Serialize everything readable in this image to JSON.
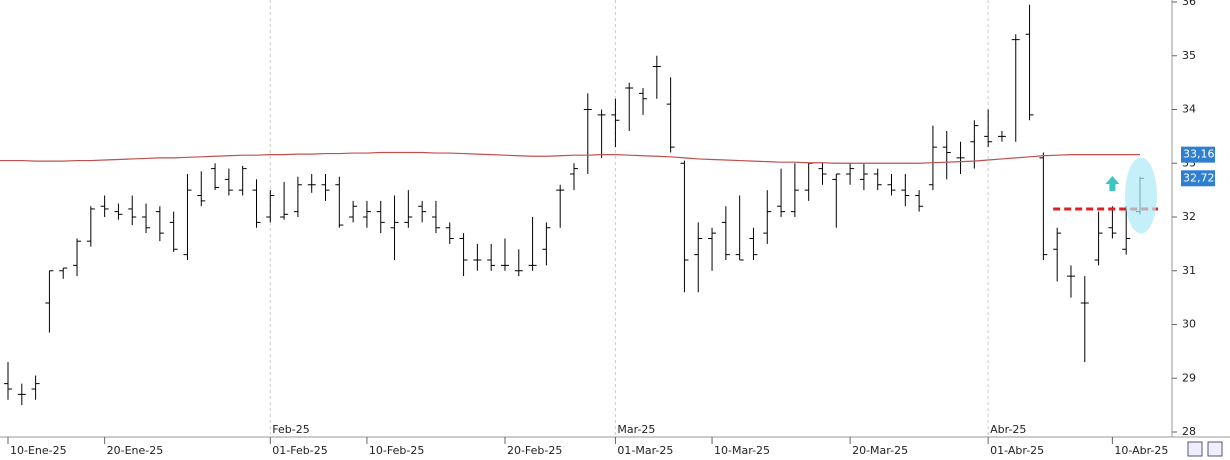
{
  "chart_data": {
    "type": "ohlc",
    "ylim": [
      28,
      36
    ],
    "yticks": [
      28,
      29,
      30,
      31,
      32,
      33,
      34,
      35,
      36
    ],
    "categories": [
      "10-Ene-25",
      null,
      null,
      null,
      null,
      null,
      null,
      "20-Ene-25",
      null,
      null,
      null,
      null,
      null,
      null,
      null,
      null,
      null,
      null,
      null,
      "01-Feb-25",
      null,
      null,
      null,
      null,
      null,
      null,
      "10-Feb-25",
      null,
      null,
      null,
      null,
      null,
      null,
      null,
      null,
      null,
      "20-Feb-25",
      null,
      null,
      null,
      null,
      null,
      null,
      null,
      "01-Mar-25",
      null,
      null,
      null,
      null,
      null,
      null,
      "10-Mar-25",
      null,
      null,
      null,
      null,
      null,
      null,
      null,
      null,
      null,
      "20-Mar-25",
      null,
      null,
      null,
      null,
      null,
      null,
      null,
      null,
      null,
      "01-Abr-25",
      null,
      null,
      null,
      null,
      null,
      null,
      null,
      null,
      "10-Abr-25",
      null,
      null
    ],
    "months": [
      null,
      null,
      null,
      null,
      null,
      null,
      null,
      null,
      null,
      null,
      null,
      null,
      null,
      null,
      null,
      null,
      null,
      null,
      null,
      "Feb-25",
      null,
      null,
      null,
      null,
      null,
      null,
      null,
      null,
      null,
      null,
      null,
      null,
      null,
      null,
      null,
      null,
      null,
      null,
      null,
      null,
      null,
      null,
      null,
      null,
      "Mar-25",
      null,
      null,
      null,
      null,
      null,
      null,
      null,
      null,
      null,
      null,
      null,
      null,
      null,
      null,
      null,
      null,
      null,
      null,
      null,
      null,
      null,
      null,
      null,
      null,
      null,
      null,
      "Abr-25",
      null,
      null,
      null,
      null,
      null,
      null,
      null,
      null,
      null,
      null,
      null
    ],
    "bars": [
      [
        28.9,
        29.3,
        28.6,
        28.8
      ],
      [
        28.7,
        28.9,
        28.5,
        28.7
      ],
      [
        28.8,
        29.05,
        28.6,
        28.9
      ],
      [
        30.4,
        31.0,
        29.85,
        31.0
      ],
      [
        31.0,
        31.05,
        30.85,
        31.05
      ],
      [
        31.1,
        31.6,
        30.9,
        31.55
      ],
      [
        31.55,
        32.2,
        31.45,
        32.15
      ],
      [
        32.2,
        32.4,
        32.0,
        32.15
      ],
      [
        32.1,
        32.25,
        31.95,
        32.05
      ],
      [
        32.15,
        32.4,
        31.85,
        32.0
      ],
      [
        32.0,
        32.25,
        31.7,
        31.8
      ],
      [
        32.1,
        32.2,
        31.55,
        31.7
      ],
      [
        31.9,
        32.1,
        31.35,
        31.4
      ],
      [
        31.3,
        32.8,
        31.2,
        32.5
      ],
      [
        32.4,
        32.85,
        32.2,
        32.3
      ],
      [
        32.9,
        33.0,
        32.5,
        32.55
      ],
      [
        32.7,
        32.9,
        32.4,
        32.5
      ],
      [
        32.5,
        32.95,
        32.4,
        32.9
      ],
      [
        32.5,
        32.7,
        31.8,
        31.9
      ],
      [
        32.0,
        32.5,
        31.9,
        32.4
      ],
      [
        32.0,
        32.65,
        31.95,
        32.05
      ],
      [
        32.1,
        32.75,
        32.0,
        32.6
      ],
      [
        32.6,
        32.8,
        32.45,
        32.6
      ],
      [
        32.6,
        32.8,
        32.3,
        32.5
      ],
      [
        32.6,
        32.75,
        31.8,
        31.85
      ],
      [
        32.0,
        32.3,
        31.9,
        32.2
      ],
      [
        32.0,
        32.3,
        31.8,
        32.1
      ],
      [
        32.1,
        32.3,
        31.7,
        31.9
      ],
      [
        31.8,
        32.4,
        31.2,
        31.9
      ],
      [
        31.9,
        32.5,
        31.8,
        32.0
      ],
      [
        32.2,
        32.3,
        31.9,
        32.1
      ],
      [
        32.0,
        32.3,
        31.7,
        31.8
      ],
      [
        31.8,
        31.9,
        31.5,
        31.6
      ],
      [
        31.6,
        31.7,
        30.9,
        31.2
      ],
      [
        31.2,
        31.5,
        31.0,
        31.2
      ],
      [
        31.2,
        31.5,
        31.0,
        31.1
      ],
      [
        31.1,
        31.6,
        31.0,
        31.1
      ],
      [
        31.0,
        31.4,
        30.9,
        31.0
      ],
      [
        31.1,
        32.0,
        31.0,
        31.1
      ],
      [
        31.4,
        31.9,
        31.1,
        31.8
      ],
      [
        32.5,
        32.6,
        31.8,
        32.5
      ],
      [
        32.8,
        33.0,
        32.5,
        32.9
      ],
      [
        34.0,
        34.3,
        32.8,
        34.0
      ],
      [
        33.9,
        34.0,
        33.1,
        33.9
      ],
      [
        33.9,
        34.2,
        33.3,
        33.8
      ],
      [
        34.4,
        34.5,
        33.6,
        34.4
      ],
      [
        34.3,
        34.4,
        33.9,
        34.2
      ],
      [
        34.8,
        35.0,
        34.2,
        34.8
      ],
      [
        34.1,
        34.6,
        33.2,
        33.3
      ],
      [
        33.0,
        33.05,
        30.6,
        31.2
      ],
      [
        31.3,
        31.9,
        30.6,
        31.6
      ],
      [
        31.6,
        31.8,
        31.0,
        31.7
      ],
      [
        31.9,
        32.2,
        31.2,
        31.3
      ],
      [
        31.3,
        32.4,
        31.2,
        31.2
      ],
      [
        31.6,
        31.8,
        31.2,
        31.3
      ],
      [
        31.7,
        32.5,
        31.5,
        32.1
      ],
      [
        32.2,
        32.9,
        32.0,
        32.1
      ],
      [
        32.1,
        33.0,
        32.0,
        32.5
      ],
      [
        32.5,
        33.0,
        32.3,
        33.0
      ],
      [
        32.9,
        33.0,
        32.6,
        32.8
      ],
      [
        32.7,
        32.8,
        31.8,
        32.8
      ],
      [
        32.8,
        33.0,
        32.6,
        32.9
      ],
      [
        32.7,
        33.0,
        32.5,
        32.8
      ],
      [
        32.8,
        32.9,
        32.5,
        32.6
      ],
      [
        32.6,
        32.8,
        32.4,
        32.5
      ],
      [
        32.5,
        32.8,
        32.2,
        32.4
      ],
      [
        32.4,
        32.5,
        32.1,
        32.2
      ],
      [
        32.6,
        33.7,
        32.5,
        33.3
      ],
      [
        33.3,
        33.6,
        32.7,
        33.2
      ],
      [
        33.1,
        33.4,
        32.8,
        33.1
      ],
      [
        33.4,
        33.8,
        32.9,
        33.7
      ],
      [
        33.5,
        34.0,
        33.3,
        33.4
      ],
      [
        33.5,
        33.6,
        33.4,
        33.5
      ],
      [
        35.3,
        35.4,
        33.4,
        35.3
      ],
      [
        35.4,
        35.95,
        33.8,
        33.9
      ],
      [
        33.1,
        33.2,
        31.2,
        31.3
      ],
      [
        31.4,
        31.8,
        30.8,
        31.7
      ],
      [
        30.9,
        31.1,
        30.5,
        30.9
      ],
      [
        30.4,
        30.9,
        29.3,
        30.4
      ],
      [
        31.2,
        32.1,
        31.1,
        31.7
      ],
      [
        31.8,
        32.2,
        31.6,
        31.7
      ],
      [
        31.4,
        32.2,
        31.3,
        31.6
      ],
      [
        32.1,
        32.75,
        32.05,
        32.72
      ]
    ],
    "average": {
      "color": "#c0504d",
      "values": [
        33.05,
        33.05,
        33.04,
        33.04,
        33.04,
        33.05,
        33.05,
        33.06,
        33.07,
        33.08,
        33.09,
        33.1,
        33.1,
        33.11,
        33.12,
        33.13,
        33.14,
        33.15,
        33.15,
        33.16,
        33.16,
        33.17,
        33.17,
        33.18,
        33.18,
        33.19,
        33.19,
        33.2,
        33.2,
        33.2,
        33.2,
        33.19,
        33.19,
        33.18,
        33.17,
        33.16,
        33.15,
        33.14,
        33.13,
        33.13,
        33.14,
        33.15,
        33.15,
        33.16,
        33.16,
        33.15,
        33.14,
        33.13,
        33.12,
        33.1,
        33.08,
        33.07,
        33.06,
        33.05,
        33.04,
        33.03,
        33.02,
        33.02,
        33.01,
        33.01,
        33.0,
        33.0,
        33.0,
        33.0,
        33.0,
        33.0,
        33.0,
        33.01,
        33.02,
        33.03,
        33.04,
        33.06,
        33.08,
        33.1,
        33.12,
        33.14,
        33.15,
        33.16,
        33.16,
        33.16,
        33.16,
        33.16,
        33.16
      ]
    },
    "price_labels": [
      {
        "value": 33.16,
        "label": "33,16"
      },
      {
        "value": 32.72,
        "label": "32,72"
      }
    ],
    "level": {
      "value": 32.15,
      "color": "#e02020"
    },
    "bar_color": "#000000",
    "grid": true
  }
}
